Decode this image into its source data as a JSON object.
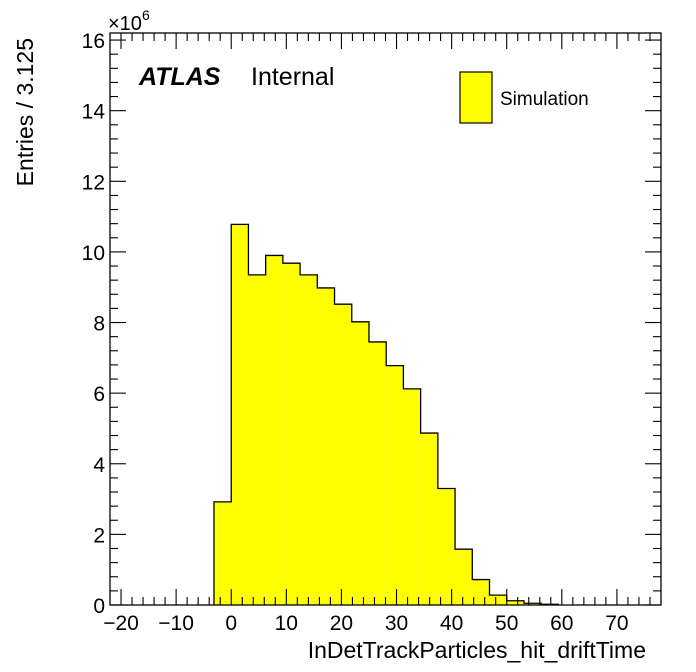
{
  "chart_data": {
    "type": "histogram",
    "xlabel": "InDetTrackParticles_hit_driftTime",
    "ylabel": "Entries / 3.125",
    "xlim": [
      -22,
      78
    ],
    "ylim": [
      0,
      16.2
    ],
    "y_multiplier": "×10",
    "y_multiplier_exponent": "6",
    "x_ticks": [
      -20,
      -10,
      0,
      10,
      20,
      30,
      40,
      50,
      60,
      70
    ],
    "x_tick_labels": [
      "−20",
      "−10",
      "0",
      "10",
      "20",
      "30",
      "40",
      "50",
      "60",
      "70"
    ],
    "y_ticks": [
      0,
      2,
      4,
      6,
      8,
      10,
      12,
      14,
      16
    ],
    "y_tick_labels": [
      "0",
      "2",
      "4",
      "6",
      "8",
      "10",
      "12",
      "14",
      "16"
    ],
    "bin_edges": [
      -3.125,
      0,
      3.125,
      6.25,
      9.375,
      12.5,
      15.625,
      18.75,
      21.875,
      25,
      28.125,
      31.25,
      34.375,
      37.5,
      40.625,
      43.75,
      46.875,
      50,
      53.125,
      56.25,
      59.375
    ],
    "values": [
      2.92,
      10.78,
      9.35,
      9.9,
      9.68,
      9.35,
      8.98,
      8.52,
      8.02,
      7.45,
      6.78,
      6.12,
      4.87,
      3.3,
      1.58,
      0.72,
      0.28,
      0.12,
      0.05,
      0.02
    ],
    "fill_color": "#ffff00",
    "line_color": "#000000",
    "legend": [
      {
        "label": "Simulation",
        "color": "#ffff00"
      }
    ],
    "legend_position": "top-right",
    "label_atlas": "ATLAS",
    "label_status": "Internal",
    "grid": false
  }
}
